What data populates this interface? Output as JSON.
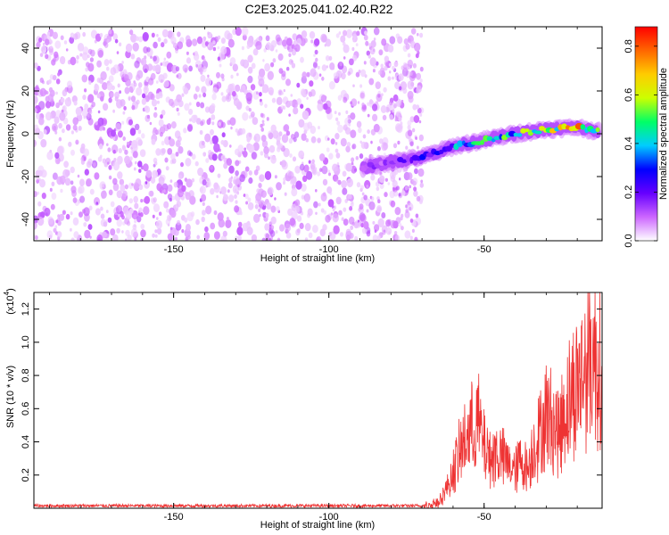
{
  "title": "C2E3.2025.041.02.40.R22",
  "chart_data": [
    {
      "type": "heatmap",
      "xlabel": "Height of straight line (km)",
      "ylabel": "Frequency (Hz)",
      "xlim": [
        -195,
        -12
      ],
      "ylim": [
        -50,
        50
      ],
      "x_ticks": [
        -150,
        -100,
        -50
      ],
      "x_tick_labels": [
        "-150",
        "-100",
        "-50"
      ],
      "y_ticks": [
        -40,
        -20,
        0,
        20,
        40
      ],
      "y_tick_labels": [
        "-40",
        "-20",
        "0",
        "20",
        "40"
      ],
      "colorbar": {
        "label": "Normalized spectral amplitude",
        "range": [
          0,
          0.88
        ],
        "ticks": [
          0.0,
          0.2,
          0.4,
          0.6,
          0.8
        ],
        "tick_labels": [
          "0.0",
          "0.2",
          "0.4",
          "0.6",
          "0.8"
        ],
        "colors": [
          "#ffffff",
          "#cc66ff",
          "#6600ff",
          "#0000ff",
          "#00ccff",
          "#00ff66",
          "#ccff00",
          "#ffcc00",
          "#ff6600",
          "#ff0000"
        ]
      },
      "noise_region": {
        "x_range": [
          -195,
          -70
        ],
        "y_range": [
          -50,
          48
        ],
        "amplitude": [
          0.03,
          0.12
        ]
      },
      "signal_track": {
        "x": [
          -89,
          -80,
          -70,
          -60,
          -50,
          -40,
          -30,
          -20,
          -13
        ],
        "y": [
          -16,
          -13,
          -11,
          -6,
          -3,
          0,
          2,
          3,
          1
        ],
        "amplitude": [
          0.15,
          0.2,
          0.3,
          0.45,
          0.55,
          0.6,
          0.7,
          0.85,
          0.8
        ]
      }
    },
    {
      "type": "line",
      "xlabel": "Height of straight line (km)",
      "ylabel": "SNR (10 * v/v)",
      "scale_note": "(x10",
      "scale_exp": "4",
      "scale_close": ")",
      "xlim": [
        -195,
        -12
      ],
      "ylim": [
        0,
        1.3
      ],
      "x_ticks": [
        -150,
        -100,
        -50
      ],
      "x_tick_labels": [
        "-150",
        "-100",
        "-50"
      ],
      "y_ticks": [
        0.2,
        0.4,
        0.6,
        0.8,
        1.0,
        1.2
      ],
      "y_tick_labels": [
        "0.2",
        "0.4",
        "0.6",
        "0.8",
        "1.0",
        "1.2"
      ],
      "series": [
        {
          "color": "#ee3333",
          "x": [
            -195,
            -150,
            -100,
            -70,
            -65,
            -62,
            -60,
            -57,
            -55,
            -52,
            -50,
            -48,
            -46,
            -44,
            -42,
            -40,
            -38,
            -36,
            -34,
            -32,
            -30,
            -28,
            -26,
            -24,
            -22,
            -20,
            -18,
            -16,
            -14,
            -12
          ],
          "y": [
            0.01,
            0.01,
            0.01,
            0.01,
            0.05,
            0.15,
            0.3,
            0.5,
            0.6,
            0.7,
            0.5,
            0.4,
            0.45,
            0.4,
            0.35,
            0.3,
            0.4,
            0.3,
            0.5,
            0.6,
            0.75,
            0.7,
            0.6,
            0.8,
            0.9,
            1.0,
            1.1,
            1.25,
            1.2,
            1.1
          ]
        }
      ]
    }
  ]
}
